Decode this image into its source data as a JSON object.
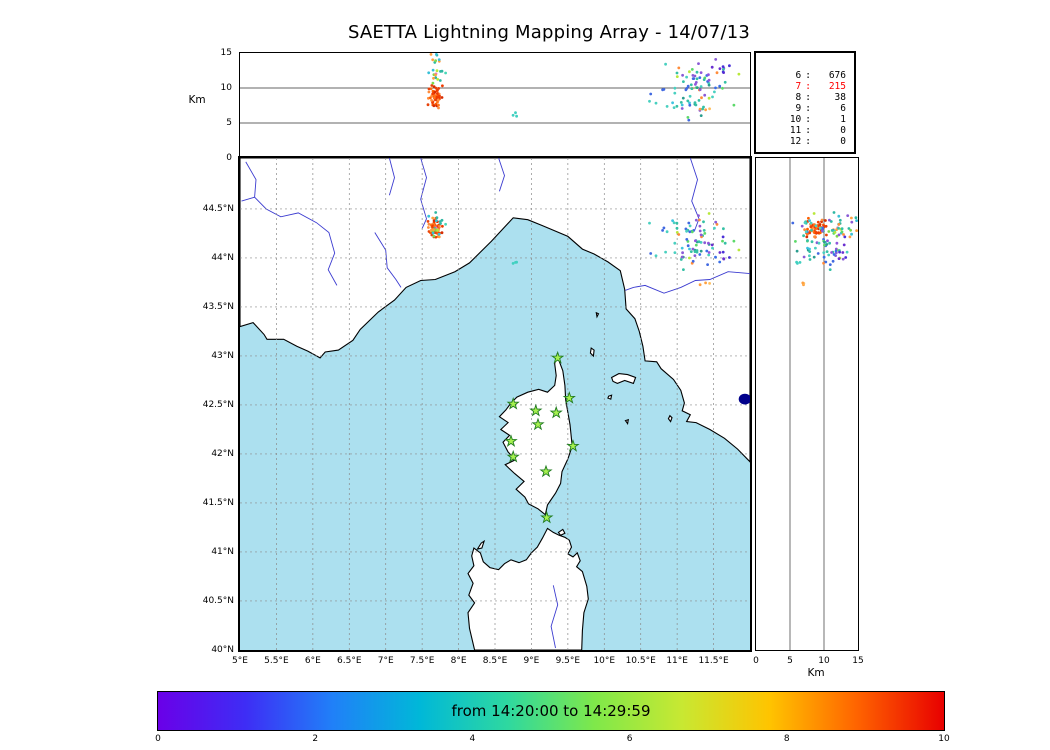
{
  "title": "SAETTA Lightning Mapping Array - 14/07/13",
  "panels": {
    "alt_lon": {
      "ylabel": "Km",
      "yticks": [
        {
          "v": 15,
          "label": "15"
        },
        {
          "v": 10,
          "label": "10"
        },
        {
          "v": 5,
          "label": "5"
        },
        {
          "v": 0,
          "label": "0"
        }
      ],
      "grid_km": [
        5,
        10
      ]
    },
    "counts": {
      "separator": ":",
      "rows": [
        {
          "min_stations": "6",
          "count": "676",
          "color": "#000000"
        },
        {
          "min_stations": "7",
          "count": "215",
          "color": "#ff0000"
        },
        {
          "min_stations": "8",
          "count": "38",
          "color": "#000000"
        },
        {
          "min_stations": "9",
          "count": "6",
          "color": "#000000"
        },
        {
          "min_stations": "10",
          "count": "1",
          "color": "#000000"
        },
        {
          "min_stations": "11",
          "count": "0",
          "color": "#000000"
        },
        {
          "min_stations": "12",
          "count": "0",
          "color": "#000000"
        }
      ]
    },
    "map": {
      "sea_color": "#ace0ef",
      "land_color": "#ffffff",
      "river_color": "#3c3cd0",
      "lake_color": "#00008b",
      "lat_ticks": [
        {
          "v": 44.5,
          "label": "44.5°N"
        },
        {
          "v": 44,
          "label": "44°N"
        },
        {
          "v": 43.5,
          "label": "43.5°N"
        },
        {
          "v": 43,
          "label": "43°N"
        },
        {
          "v": 42.5,
          "label": "42.5°N"
        },
        {
          "v": 42,
          "label": "42°N"
        },
        {
          "v": 41.5,
          "label": "41.5°N"
        },
        {
          "v": 41,
          "label": "41°N"
        },
        {
          "v": 40.5,
          "label": "40.5°N"
        },
        {
          "v": 40,
          "label": "40°N"
        }
      ],
      "lon_ticks": [
        {
          "v": 5,
          "label": "5°E"
        },
        {
          "v": 5.5,
          "label": "5.5°E"
        },
        {
          "v": 6,
          "label": "6°E"
        },
        {
          "v": 6.5,
          "label": "6.5°E"
        },
        {
          "v": 7,
          "label": "7°E"
        },
        {
          "v": 7.5,
          "label": "7.5°E"
        },
        {
          "v": 8,
          "label": "8°E"
        },
        {
          "v": 8.5,
          "label": "8.5°E"
        },
        {
          "v": 9,
          "label": "9°E"
        },
        {
          "v": 9.5,
          "label": "9.5°E"
        },
        {
          "v": 10,
          "label": "10°E"
        },
        {
          "v": 10.5,
          "label": "10.5°E"
        },
        {
          "v": 11,
          "label": "11°E"
        },
        {
          "v": 11.5,
          "label": "11.5°E"
        }
      ]
    },
    "alt_lat": {
      "xlabel": "Km",
      "xticks": [
        {
          "v": 0,
          "label": "0"
        },
        {
          "v": 5,
          "label": "5"
        },
        {
          "v": 10,
          "label": "10"
        },
        {
          "v": 15,
          "label": "15"
        }
      ],
      "grid_km": [
        5,
        10
      ]
    }
  },
  "colorbar": {
    "label": "from 14:20:00 to 14:29:59",
    "ticks": [
      "0",
      "2",
      "4",
      "6",
      "8",
      "10"
    ],
    "gradient": [
      "#6a00e8",
      "#3e2df5",
      "#2080f8",
      "#00b8d8",
      "#2ed8a0",
      "#7fe84a",
      "#c8e832",
      "#ffc400",
      "#ff6400",
      "#e80000"
    ]
  },
  "chart_data": {
    "type": "scatter",
    "title": "SAETTA Lightning Mapping Array - 14/07/13",
    "description": "Lightning Mapping Array composite plot: altitude vs longitude (top), plan-view map (center), altitude vs latitude (right); dot color encodes time within the 10-minute window",
    "time_window": {
      "from": "14:20:00",
      "to": "14:29:59",
      "color_scale_minutes": [
        0,
        10
      ]
    },
    "axes": {
      "map_lon_range_deg_e": [
        5,
        12
      ],
      "map_lat_range_deg_n": [
        40,
        45.02
      ],
      "altitude_range_km": [
        0,
        15
      ]
    },
    "source_counts_by_min_stations": {
      "6": 676,
      "7": 215,
      "8": 38,
      "9": 6,
      "10": 1,
      "11": 0,
      "12": 0
    },
    "stations_lon_lat": [
      [
        9.36,
        42.98
      ],
      [
        9.52,
        42.57
      ],
      [
        8.75,
        42.51
      ],
      [
        9.06,
        42.44
      ],
      [
        9.34,
        42.42
      ],
      [
        9.09,
        42.3
      ],
      [
        8.72,
        42.13
      ],
      [
        9.57,
        42.08
      ],
      [
        8.75,
        41.97
      ],
      [
        9.2,
        41.82
      ],
      [
        9.21,
        41.35
      ]
    ],
    "clusters": [
      {
        "name": "west-storm-core",
        "lon": 7.68,
        "lat": 44.3,
        "alt": 8.8,
        "lon_sd": 0.05,
        "lat_sd": 0.045,
        "alt_sd": 0.7,
        "n": 55,
        "palette": [
          "#e8420a",
          "#ff5f00",
          "#f03c00",
          "#ff7519",
          "#d62d02",
          "#ff8c3a"
        ]
      },
      {
        "name": "west-storm-upper",
        "lon": 7.68,
        "lat": 44.31,
        "alt": 12.3,
        "lon_sd": 0.09,
        "lat_sd": 0.07,
        "alt_sd": 1.4,
        "n": 22,
        "palette": [
          "#2fb8a3",
          "#49d8b8",
          "#7fd84a",
          "#b8e83a",
          "#e377c2",
          "#38c0d8",
          "#ffa040"
        ]
      },
      {
        "name": "east-storm-main",
        "lon": 11.25,
        "lat": 44.17,
        "alt": 10.0,
        "lon_sd": 0.24,
        "lat_sd": 0.12,
        "alt_sd": 2.3,
        "n": 75,
        "palette": [
          "#35c0a5",
          "#49d0c0",
          "#2a9d8f",
          "#5cd96a",
          "#3ec4e0",
          "#35c0a5",
          "#49d0c0",
          "#8a5bd6",
          "#4169e1",
          "#ff8c3a",
          "#b8e83a"
        ]
      },
      {
        "name": "east-storm-high",
        "lon": 11.52,
        "lat": 44.08,
        "alt": 11.5,
        "lon_sd": 0.13,
        "lat_sd": 0.09,
        "alt_sd": 1.1,
        "n": 14,
        "palette": [
          "#6a2fd0",
          "#4b30d8",
          "#3a6fe8",
          "#9055dd"
        ]
      },
      {
        "name": "isolated-a",
        "lon": 8.79,
        "lat": 43.94,
        "alt": 6.2,
        "lon_sd": 0.02,
        "lat_sd": 0.02,
        "alt_sd": 0.4,
        "n": 3,
        "palette": [
          "#40d0c0"
        ]
      },
      {
        "name": "isolated-b",
        "lon": 11.38,
        "lat": 43.7,
        "alt": 6.3,
        "lon_sd": 0.05,
        "lat_sd": 0.05,
        "alt_sd": 0.5,
        "n": 3,
        "palette": [
          "#ffa040",
          "#ffc060"
        ]
      }
    ],
    "basemap": {
      "mainland": [
        [
          5.0,
          43.3
        ],
        [
          5.18,
          43.34
        ],
        [
          5.33,
          43.22
        ],
        [
          5.37,
          43.17
        ],
        [
          5.6,
          43.17
        ],
        [
          5.78,
          43.1
        ],
        [
          5.93,
          43.05
        ],
        [
          6.1,
          42.98
        ],
        [
          6.17,
          43.04
        ],
        [
          6.35,
          43.06
        ],
        [
          6.55,
          43.16
        ],
        [
          6.65,
          43.27
        ],
        [
          6.9,
          43.45
        ],
        [
          7.12,
          43.57
        ],
        [
          7.28,
          43.7
        ],
        [
          7.48,
          43.77
        ],
        [
          7.68,
          43.78
        ],
        [
          7.95,
          43.86
        ],
        [
          8.15,
          43.95
        ],
        [
          8.45,
          44.17
        ],
        [
          8.75,
          44.41
        ],
        [
          8.95,
          44.39
        ],
        [
          9.15,
          44.33
        ],
        [
          9.5,
          44.22
        ],
        [
          9.7,
          44.09
        ],
        [
          9.86,
          44.04
        ],
        [
          10.05,
          43.96
        ],
        [
          10.22,
          43.87
        ],
        [
          10.28,
          43.68
        ],
        [
          10.3,
          43.48
        ],
        [
          10.42,
          43.38
        ],
        [
          10.48,
          43.25
        ],
        [
          10.53,
          43.1
        ],
        [
          10.56,
          42.95
        ],
        [
          10.72,
          42.94
        ],
        [
          10.78,
          42.87
        ],
        [
          10.95,
          42.76
        ],
        [
          11.05,
          42.65
        ],
        [
          11.1,
          42.52
        ],
        [
          11.07,
          42.44
        ],
        [
          11.18,
          42.4
        ],
        [
          11.13,
          42.33
        ],
        [
          11.26,
          42.32
        ],
        [
          11.45,
          42.25
        ],
        [
          11.65,
          42.16
        ],
        [
          11.83,
          42.05
        ],
        [
          12.0,
          41.92
        ],
        [
          12.0,
          45.02
        ],
        [
          5.0,
          45.02
        ]
      ],
      "corsica": [
        [
          9.35,
          43.01
        ],
        [
          9.43,
          42.85
        ],
        [
          9.46,
          42.7
        ],
        [
          9.47,
          42.55
        ],
        [
          9.53,
          42.3
        ],
        [
          9.56,
          42.08
        ],
        [
          9.5,
          41.95
        ],
        [
          9.42,
          41.82
        ],
        [
          9.4,
          41.7
        ],
        [
          9.33,
          41.6
        ],
        [
          9.22,
          41.48
        ],
        [
          9.19,
          41.38
        ],
        [
          9.09,
          41.44
        ],
        [
          8.96,
          41.49
        ],
        [
          8.91,
          41.56
        ],
        [
          8.79,
          41.64
        ],
        [
          8.9,
          41.72
        ],
        [
          8.77,
          41.8
        ],
        [
          8.64,
          41.89
        ],
        [
          8.78,
          41.94
        ],
        [
          8.68,
          42.02
        ],
        [
          8.61,
          42.12
        ],
        [
          8.7,
          42.19
        ],
        [
          8.58,
          42.25
        ],
        [
          8.68,
          42.32
        ],
        [
          8.56,
          42.38
        ],
        [
          8.65,
          42.45
        ],
        [
          8.72,
          42.52
        ],
        [
          8.8,
          42.58
        ],
        [
          8.95,
          42.63
        ],
        [
          9.1,
          42.66
        ],
        [
          9.22,
          42.63
        ],
        [
          9.32,
          42.7
        ],
        [
          9.34,
          42.8
        ],
        [
          9.32,
          42.92
        ]
      ],
      "sardinia": [
        [
          8.22,
          40.0
        ],
        [
          8.15,
          40.22
        ],
        [
          8.13,
          40.38
        ],
        [
          8.22,
          40.48
        ],
        [
          8.14,
          40.56
        ],
        [
          8.2,
          40.68
        ],
        [
          8.13,
          40.78
        ],
        [
          8.21,
          40.86
        ],
        [
          8.18,
          40.96
        ],
        [
          8.21,
          41.04
        ],
        [
          8.3,
          40.99
        ],
        [
          8.34,
          40.9
        ],
        [
          8.43,
          40.84
        ],
        [
          8.55,
          40.82
        ],
        [
          8.63,
          40.88
        ],
        [
          8.72,
          40.92
        ],
        [
          8.83,
          40.89
        ],
        [
          8.93,
          40.92
        ],
        [
          9.0,
          40.99
        ],
        [
          9.08,
          41.05
        ],
        [
          9.15,
          41.14
        ],
        [
          9.22,
          41.24
        ],
        [
          9.3,
          41.2
        ],
        [
          9.38,
          41.17
        ],
        [
          9.46,
          41.15
        ],
        [
          9.52,
          41.12
        ],
        [
          9.55,
          41.05
        ],
        [
          9.5,
          40.98
        ],
        [
          9.57,
          40.95
        ],
        [
          9.63,
          40.99
        ],
        [
          9.67,
          40.91
        ],
        [
          9.62,
          40.85
        ],
        [
          9.7,
          40.8
        ],
        [
          9.76,
          40.65
        ],
        [
          9.78,
          40.52
        ],
        [
          9.72,
          40.38
        ],
        [
          9.7,
          40.2
        ],
        [
          9.69,
          40.0
        ]
      ],
      "islands": [
        [
          [
            8.26,
            41.03
          ],
          [
            8.31,
            41.09
          ],
          [
            8.35,
            41.11
          ],
          [
            8.32,
            41.04
          ]
        ],
        [
          [
            9.37,
            41.2
          ],
          [
            9.43,
            41.23
          ],
          [
            9.46,
            41.19
          ],
          [
            9.4,
            41.17
          ]
        ],
        [
          [
            10.1,
            42.78
          ],
          [
            10.2,
            42.82
          ],
          [
            10.32,
            42.81
          ],
          [
            10.43,
            42.78
          ],
          [
            10.4,
            42.72
          ],
          [
            10.28,
            42.75
          ],
          [
            10.18,
            42.72
          ],
          [
            10.12,
            42.74
          ]
        ],
        [
          [
            9.82,
            43.08
          ],
          [
            9.86,
            43.06
          ],
          [
            9.85,
            43.0
          ],
          [
            9.81,
            43.03
          ]
        ],
        [
          [
            9.89,
            43.44
          ],
          [
            9.92,
            43.43
          ],
          [
            9.9,
            43.4
          ]
        ],
        [
          [
            10.06,
            42.59
          ],
          [
            10.1,
            42.6
          ],
          [
            10.09,
            42.56
          ],
          [
            10.05,
            42.57
          ]
        ],
        [
          [
            10.29,
            42.34
          ],
          [
            10.33,
            42.35
          ],
          [
            10.32,
            42.31
          ]
        ],
        [
          [
            10.9,
            42.39
          ],
          [
            10.93,
            42.37
          ],
          [
            10.91,
            42.33
          ],
          [
            10.88,
            42.36
          ]
        ]
      ],
      "rivers": [
        [
          [
            5.08,
            44.98
          ],
          [
            5.22,
            44.8
          ],
          [
            5.2,
            44.62
          ],
          [
            5.36,
            44.5
          ],
          [
            5.56,
            44.42
          ],
          [
            5.8,
            44.46
          ],
          [
            6.05,
            44.36
          ],
          [
            6.22,
            44.26
          ],
          [
            6.3,
            44.05
          ],
          [
            6.21,
            43.88
          ],
          [
            6.33,
            43.72
          ]
        ],
        [
          [
            5.02,
            44.58
          ],
          [
            5.2,
            44.62
          ]
        ],
        [
          [
            6.85,
            44.26
          ],
          [
            7.0,
            44.08
          ],
          [
            7.02,
            43.9
          ],
          [
            7.14,
            43.78
          ],
          [
            7.21,
            43.7
          ]
        ],
        [
          [
            7.48,
            45.02
          ],
          [
            7.56,
            44.82
          ],
          [
            7.48,
            44.6
          ],
          [
            7.56,
            44.4
          ],
          [
            7.5,
            44.3
          ]
        ],
        [
          [
            7.05,
            45.02
          ],
          [
            7.12,
            44.82
          ],
          [
            7.05,
            44.64
          ]
        ],
        [
          [
            8.55,
            45.02
          ],
          [
            8.63,
            44.84
          ],
          [
            8.56,
            44.68
          ]
        ],
        [
          [
            11.18,
            45.02
          ],
          [
            11.28,
            44.8
          ],
          [
            11.2,
            44.58
          ],
          [
            11.3,
            44.4
          ],
          [
            11.24,
            44.28
          ]
        ],
        [
          [
            12.0,
            43.84
          ],
          [
            11.7,
            43.86
          ],
          [
            11.45,
            43.78
          ],
          [
            11.25,
            43.77
          ],
          [
            11.05,
            43.7
          ],
          [
            10.82,
            43.64
          ],
          [
            10.56,
            43.72
          ],
          [
            10.4,
            43.7
          ],
          [
            10.29,
            43.67
          ]
        ],
        [
          [
            9.33,
            40.02
          ],
          [
            9.27,
            40.24
          ],
          [
            9.36,
            40.46
          ],
          [
            9.3,
            40.66
          ]
        ]
      ],
      "lake": [
        11.93,
        42.56,
        0.085,
        0.055
      ]
    }
  }
}
